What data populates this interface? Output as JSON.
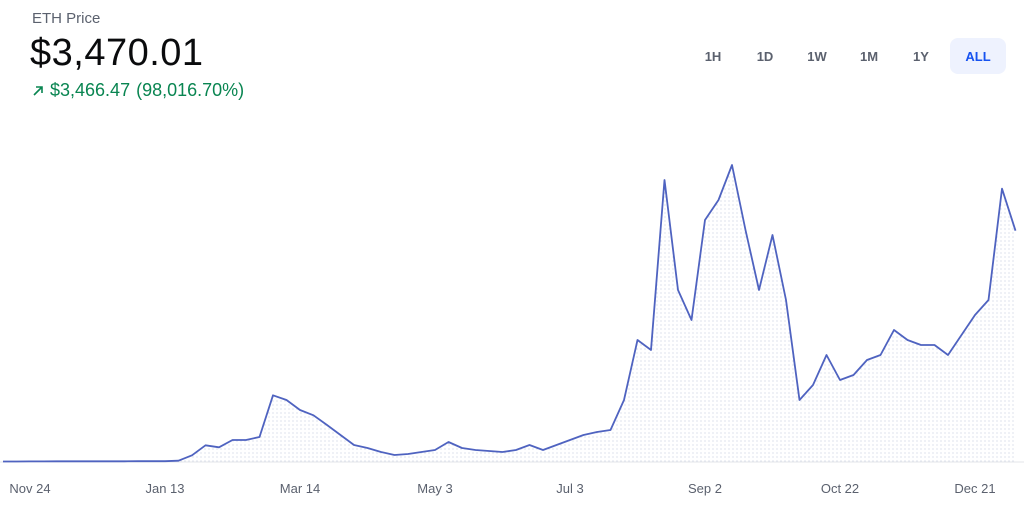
{
  "header": {
    "title": "ETH Price",
    "price": "$3,470.01",
    "change": "$3,466.47",
    "change_percent": "(98,016.70%)"
  },
  "ranges": [
    "1H",
    "1D",
    "1W",
    "1M",
    "1Y",
    "ALL"
  ],
  "selected_range": 5,
  "chart_data": {
    "type": "line",
    "color": "#4f63c0",
    "ylim": [
      0,
      4800
    ],
    "categories": [
      null,
      null,
      "Nov 24",
      null,
      null,
      null,
      null,
      null,
      null,
      null,
      null,
      null,
      "Jan 13",
      null,
      null,
      null,
      null,
      null,
      null,
      null,
      null,
      null,
      "Mar 14",
      null,
      null,
      null,
      null,
      null,
      null,
      null,
      null,
      null,
      "May 3",
      null,
      null,
      null,
      null,
      null,
      null,
      null,
      null,
      null,
      "Jul 3",
      null,
      null,
      null,
      null,
      null,
      null,
      null,
      null,
      null,
      "Sep 2",
      null,
      null,
      null,
      null,
      null,
      null,
      null,
      null,
      null,
      "Oct 22",
      null,
      null,
      null,
      null,
      null,
      null,
      null,
      null,
      null,
      "Dec 21",
      null,
      null,
      null
    ],
    "values": [
      8,
      8,
      9,
      9,
      10,
      10,
      10,
      10,
      11,
      11,
      12,
      12,
      12,
      20,
      100,
      250,
      220,
      330,
      330,
      375,
      1000,
      930,
      780,
      700,
      555,
      405,
      255,
      210,
      150,
      105,
      120,
      150,
      180,
      300,
      210,
      180,
      165,
      150,
      180,
      255,
      180,
      255,
      330,
      405,
      450,
      480,
      930,
      1830,
      1680,
      4230,
      2580,
      2130,
      3630,
      3930,
      4455,
      3480,
      2580,
      3405,
      2430,
      930,
      1155,
      1605,
      1230,
      1305,
      1530,
      1605,
      1980,
      1830,
      1755,
      1755,
      1605,
      1905,
      2205,
      2430,
      4100,
      3470
    ]
  }
}
